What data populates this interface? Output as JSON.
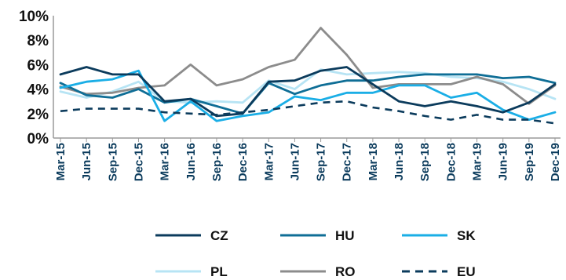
{
  "chart_data": {
    "type": "line",
    "title": "",
    "xlabel": "",
    "ylabel": "",
    "ylim": [
      0,
      10
    ],
    "y_ticks": [
      0,
      2,
      4,
      6,
      8,
      10
    ],
    "y_tick_labels": [
      "0%",
      "2%",
      "4%",
      "6%",
      "8%",
      "10%"
    ],
    "grid": false,
    "legend_position": "bottom",
    "x": [
      "Mar-15",
      "Jun-15",
      "Sep-15",
      "Dec-15",
      "Mar-16",
      "Jun-16",
      "Sep-16",
      "Dec-16",
      "Mar-17",
      "Jun-17",
      "Sep-17",
      "Dec-17",
      "Mar-18",
      "Jun-18",
      "Sep-18",
      "Dec-18",
      "Mar-19",
      "Jun-19",
      "Sep-19",
      "Dec-19"
    ],
    "series": [
      {
        "name": "CZ",
        "color": "#0b3b5c",
        "dash": "solid",
        "values": [
          5.2,
          5.8,
          5.2,
          5.2,
          3.0,
          3.2,
          1.8,
          2.0,
          4.6,
          4.7,
          5.5,
          5.8,
          4.4,
          3.0,
          2.6,
          3.0,
          2.6,
          2.1,
          2.9,
          4.4
        ]
      },
      {
        "name": "HU",
        "color": "#0f6e96",
        "dash": "solid",
        "values": [
          4.5,
          3.5,
          3.3,
          4.0,
          2.9,
          3.2,
          2.6,
          2.0,
          4.5,
          3.6,
          4.3,
          4.7,
          4.7,
          5.0,
          5.2,
          5.2,
          5.2,
          4.9,
          5.0,
          4.5
        ]
      },
      {
        "name": "SK",
        "color": "#1aaee6",
        "dash": "solid",
        "values": [
          4.1,
          4.6,
          4.8,
          5.5,
          1.4,
          3.0,
          1.4,
          1.8,
          2.1,
          3.4,
          3.1,
          3.7,
          3.7,
          4.3,
          4.3,
          3.3,
          3.7,
          2.3,
          1.5,
          2.1
        ]
      },
      {
        "name": "PL",
        "color": "#b7e4f4",
        "dash": "solid",
        "values": [
          3.8,
          3.3,
          3.8,
          4.6,
          3.0,
          2.9,
          3.0,
          2.9,
          4.7,
          4.0,
          5.6,
          5.2,
          5.3,
          5.4,
          5.3,
          5.0,
          4.9,
          4.6,
          4.0,
          3.2
        ]
      },
      {
        "name": "RO",
        "color": "#8c8c8c",
        "dash": "solid",
        "values": [
          4.2,
          3.6,
          3.7,
          4.1,
          4.3,
          6.0,
          4.3,
          4.8,
          5.8,
          6.4,
          9.0,
          6.8,
          4.1,
          4.4,
          4.4,
          4.4,
          5.0,
          4.4,
          2.8,
          4.3
        ]
      },
      {
        "name": "EU",
        "color": "#0b3b5c",
        "dash": "dashed",
        "values": [
          2.2,
          2.4,
          2.4,
          2.4,
          2.1,
          2.0,
          1.9,
          2.1,
          2.3,
          2.6,
          2.9,
          3.0,
          2.5,
          2.2,
          1.8,
          1.5,
          1.9,
          1.5,
          1.5,
          1.2
        ]
      }
    ]
  }
}
